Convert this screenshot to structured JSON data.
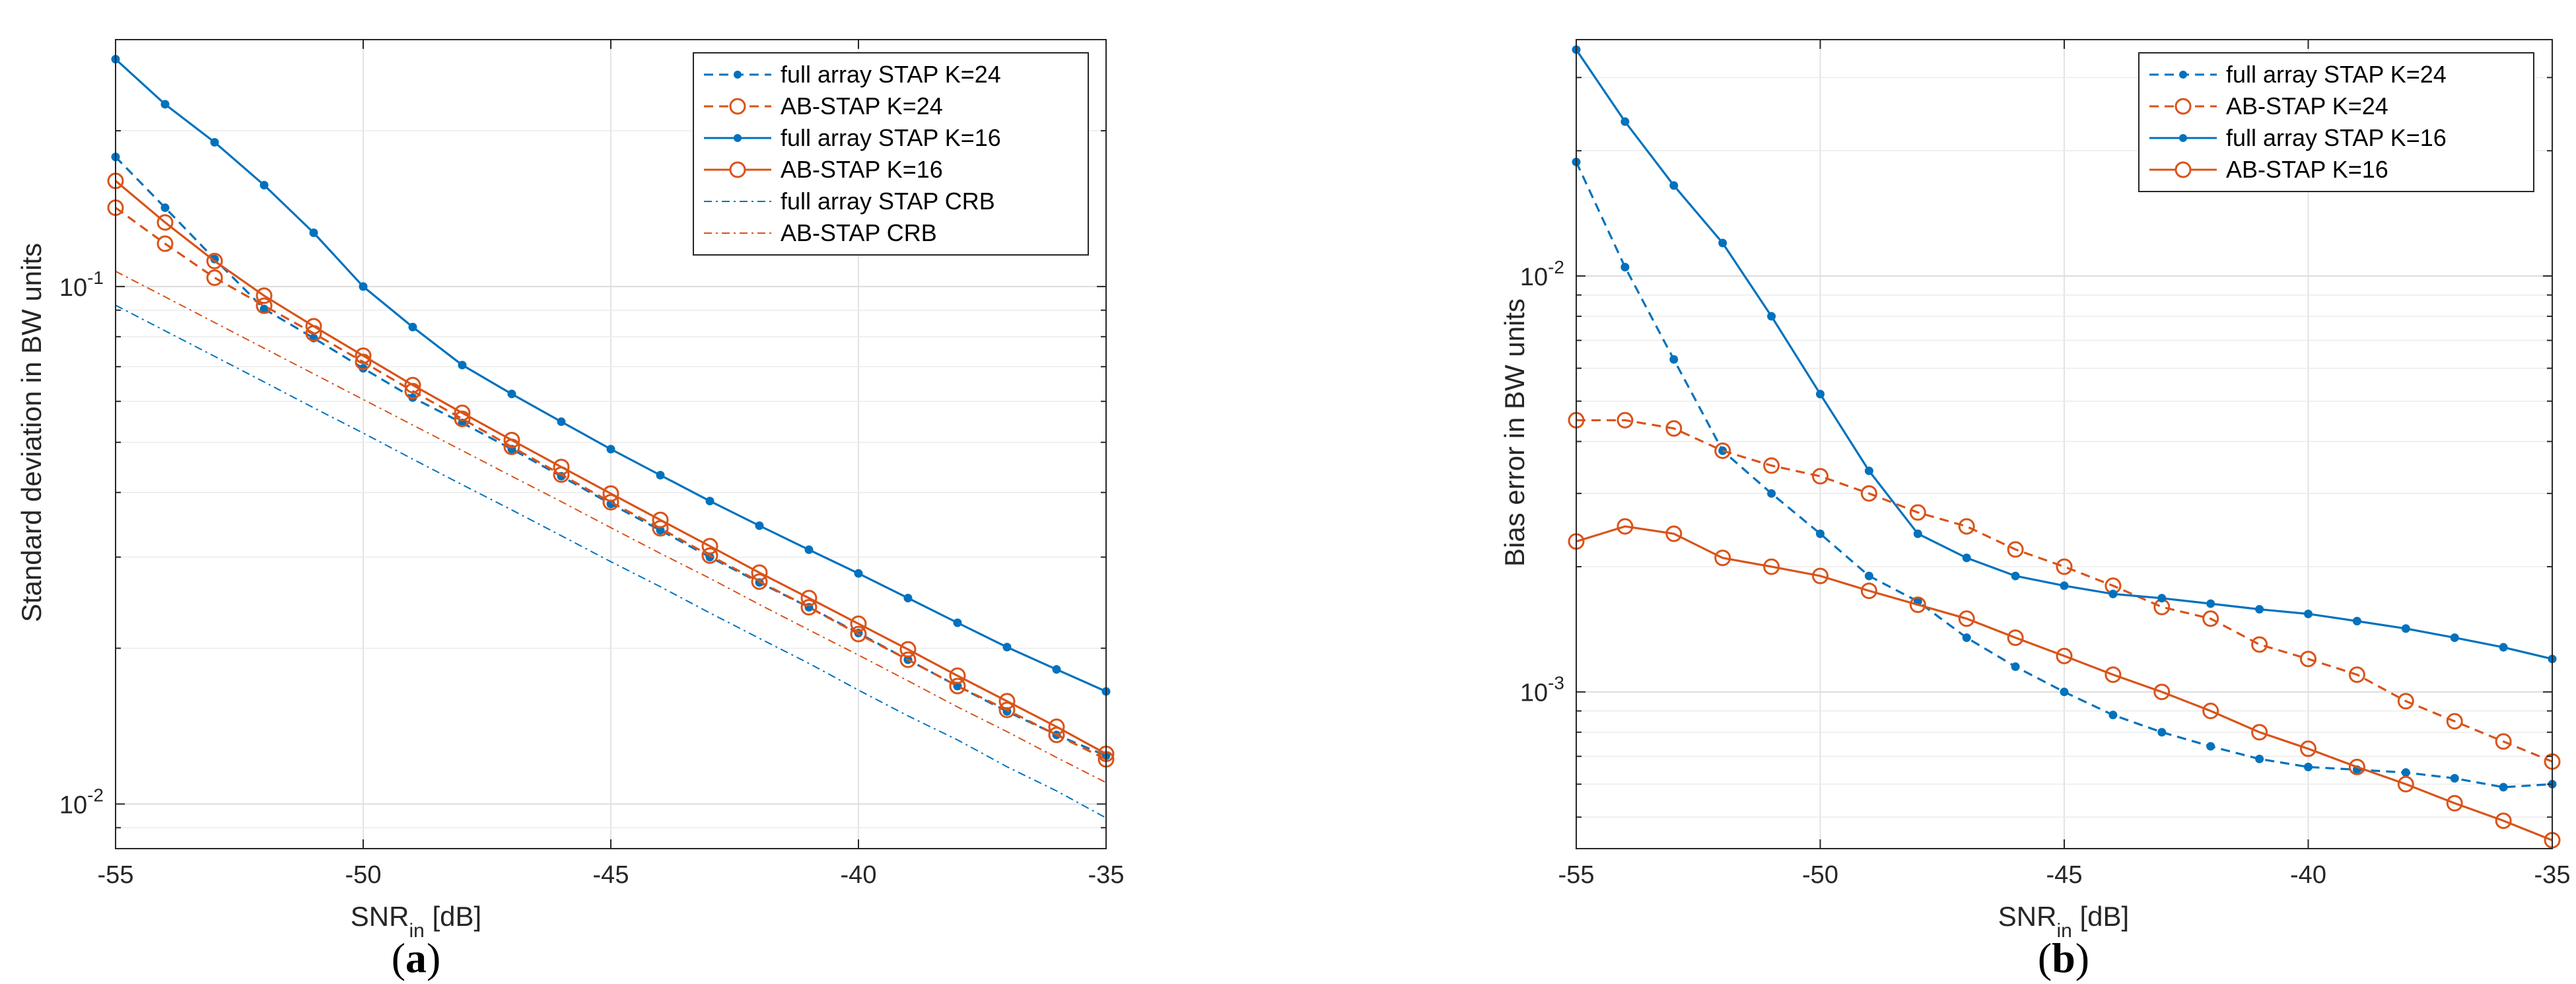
{
  "figure": {
    "panel_captions": [
      {
        "open": "(",
        "letter": "a",
        "close": ")"
      },
      {
        "open": "(",
        "letter": "b",
        "close": ")"
      }
    ]
  },
  "chart_data": [
    {
      "type": "line",
      "panel": "a",
      "xlabel": "SNR",
      "xlabel_sub": "in",
      "xlabel_unit": " [dB]",
      "ylabel": "Standard deviation in BW units",
      "yscale": "log",
      "xlim": [
        -55,
        -35
      ],
      "ylim": [
        0.0082,
        0.3
      ],
      "xticks": [
        -55,
        -50,
        -45,
        -40,
        -35
      ],
      "xtick_labels": [
        "-55",
        "-50",
        "-45",
        "-40",
        "-35"
      ],
      "yticks": [
        0.01,
        0.1
      ],
      "ytick_labels": [
        {
          "base": "10",
          "exp": "-2"
        },
        {
          "base": "10",
          "exp": "-1"
        }
      ],
      "grid": true,
      "legend_position": "top-right",
      "x": [
        -55,
        -54,
        -53,
        -52,
        -51,
        -50,
        -49,
        -48,
        -47,
        -46,
        -45,
        -44,
        -43,
        -42,
        -41,
        -40,
        -39,
        -38,
        -37,
        -36,
        -35
      ],
      "series": [
        {
          "name": "full array STAP K=24",
          "color": "#0072BD",
          "line": "dashed",
          "marker": "dot",
          "values": [
            0.178,
            0.142,
            0.113,
            0.0905,
            0.0795,
            0.0695,
            0.061,
            0.0545,
            0.0485,
            0.043,
            0.038,
            0.0338,
            0.03,
            0.0268,
            0.024,
            0.0214,
            0.019,
            0.0169,
            0.0151,
            0.0136,
            0.0124
          ]
        },
        {
          "name": "AB-STAP K=24",
          "color": "#D95319",
          "line": "dashed",
          "marker": "circle",
          "values": [
            0.142,
            0.121,
            0.104,
            0.0918,
            0.0812,
            0.0715,
            0.0628,
            0.0555,
            0.049,
            0.0433,
            0.0383,
            0.0341,
            0.0302,
            0.0269,
            0.024,
            0.0213,
            0.019,
            0.0169,
            0.0152,
            0.0136,
            0.0122
          ]
        },
        {
          "name": "full array STAP K=16",
          "color": "#0072BD",
          "line": "solid",
          "marker": "dot",
          "values": [
            0.275,
            0.225,
            0.19,
            0.157,
            0.127,
            0.1,
            0.0835,
            0.0705,
            0.062,
            0.0548,
            0.0485,
            0.0432,
            0.0385,
            0.0345,
            0.031,
            0.0279,
            0.025,
            0.0224,
            0.0201,
            0.0182,
            0.0165
          ]
        },
        {
          "name": "AB-STAP K=16",
          "color": "#D95319",
          "line": "solid",
          "marker": "circle",
          "values": [
            0.16,
            0.133,
            0.112,
            0.096,
            0.0838,
            0.0735,
            0.0645,
            0.057,
            0.0505,
            0.0448,
            0.0398,
            0.0354,
            0.0315,
            0.028,
            0.025,
            0.0223,
            0.0199,
            0.0177,
            0.0158,
            0.0141,
            0.0125
          ]
        },
        {
          "name": "full array STAP CRB",
          "color": "#0072BD",
          "line": "dashdot",
          "marker": "none",
          "values": [
            0.092,
            0.0821,
            0.0733,
            0.0654,
            0.0583,
            0.0521,
            0.0464,
            0.0414,
            0.037,
            0.033,
            0.0294,
            0.0263,
            0.0234,
            0.0209,
            0.0187,
            0.0166,
            0.0148,
            0.0133,
            0.0118,
            0.0106,
            0.0094
          ]
        },
        {
          "name": "AB-STAP CRB",
          "color": "#D95319",
          "line": "dashdot",
          "marker": "none",
          "values": [
            0.107,
            0.0955,
            0.0852,
            0.076,
            0.0678,
            0.0605,
            0.054,
            0.0482,
            0.043,
            0.0384,
            0.0342,
            0.0305,
            0.0273,
            0.0243,
            0.0217,
            0.0194,
            0.0173,
            0.0154,
            0.0138,
            0.0123,
            0.011
          ]
        }
      ]
    },
    {
      "type": "line",
      "panel": "b",
      "xlabel": "SNR",
      "xlabel_sub": "in",
      "xlabel_unit": " [dB]",
      "ylabel": "Bias error in BW units",
      "yscale": "log",
      "xlim": [
        -55,
        -35
      ],
      "ylim": [
        0.00042,
        0.037
      ],
      "xticks": [
        -55,
        -50,
        -45,
        -40,
        -35
      ],
      "xtick_labels": [
        "-55",
        "-50",
        "-45",
        "-40",
        "-35"
      ],
      "yticks": [
        0.001,
        0.01
      ],
      "ytick_labels": [
        {
          "base": "10",
          "exp": "-3"
        },
        {
          "base": "10",
          "exp": "-2"
        }
      ],
      "grid": true,
      "legend_position": "top-right",
      "x": [
        -55,
        -54,
        -53,
        -52,
        -51,
        -50,
        -49,
        -48,
        -47,
        -46,
        -45,
        -44,
        -43,
        -42,
        -41,
        -40,
        -39,
        -38,
        -37,
        -36,
        -35
      ],
      "series": [
        {
          "name": "full array STAP K=24",
          "color": "#0072BD",
          "line": "dashed",
          "marker": "dot",
          "values": [
            0.0188,
            0.0105,
            0.0063,
            0.0038,
            0.003,
            0.0024,
            0.0019,
            0.00165,
            0.00135,
            0.00115,
            0.001,
            0.00088,
            0.0008,
            0.00074,
            0.00069,
            0.00066,
            0.00065,
            0.00064,
            0.00062,
            0.00059,
            0.0006
          ]
        },
        {
          "name": "AB-STAP K=24",
          "color": "#D95319",
          "line": "dashed",
          "marker": "circle",
          "values": [
            0.0045,
            0.0045,
            0.0043,
            0.0038,
            0.0035,
            0.0033,
            0.003,
            0.0027,
            0.0025,
            0.0022,
            0.002,
            0.0018,
            0.0016,
            0.0015,
            0.0013,
            0.0012,
            0.0011,
            0.00095,
            0.00085,
            0.00076,
            0.00068
          ]
        },
        {
          "name": "full array STAP K=16",
          "color": "#0072BD",
          "line": "solid",
          "marker": "dot",
          "values": [
            0.035,
            0.0235,
            0.0165,
            0.012,
            0.008,
            0.0052,
            0.0034,
            0.0024,
            0.0021,
            0.0019,
            0.0018,
            0.00172,
            0.00168,
            0.00163,
            0.00158,
            0.00154,
            0.00148,
            0.00142,
            0.00135,
            0.00128,
            0.0012
          ]
        },
        {
          "name": "AB-STAP K=16",
          "color": "#D95319",
          "line": "solid",
          "marker": "circle",
          "values": [
            0.0023,
            0.0025,
            0.0024,
            0.0021,
            0.002,
            0.0019,
            0.00175,
            0.00162,
            0.0015,
            0.00135,
            0.00122,
            0.0011,
            0.001,
            0.0009,
            0.0008,
            0.00073,
            0.00066,
            0.0006,
            0.00054,
            0.00049,
            0.00044
          ]
        }
      ]
    }
  ]
}
